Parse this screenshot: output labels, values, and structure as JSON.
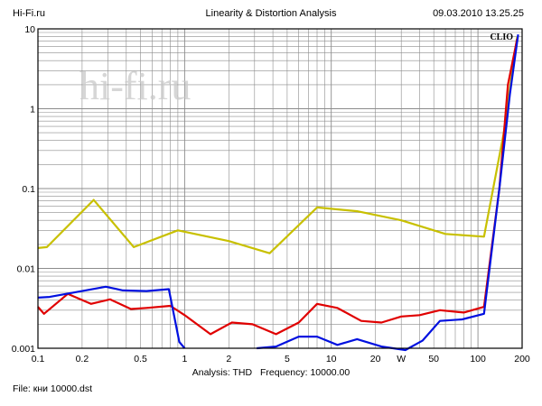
{
  "header": {
    "left": "Hi-Fi.ru",
    "center": "Linearity & Distortion Analysis",
    "right": "09.03.2010 13.25.25"
  },
  "watermark": "hi-fi.ru",
  "brand": "CLIO",
  "footer": {
    "analysis": "Analysis: THD",
    "frequency": "Frequency: 10000.00",
    "file": "File: кни 10000.dst"
  },
  "colors": {
    "series_yellow": "#c8c000",
    "series_red": "#e00000",
    "series_blue": "#0010e0",
    "grid": "#8c8c8c"
  },
  "chart_data": {
    "type": "line",
    "title": "Linearity & Distortion Analysis",
    "xscale": "log",
    "yscale": "log",
    "xlim": [
      0.1,
      200
    ],
    "ylim": [
      0.001,
      10
    ],
    "grid": true,
    "x_tick_labels": [
      {
        "v": 0.1,
        "label": "0.1"
      },
      {
        "v": 0.2,
        "label": "0.2"
      },
      {
        "v": 0.5,
        "label": "0.5"
      },
      {
        "v": 1,
        "label": "1"
      },
      {
        "v": 2,
        "label": "2"
      },
      {
        "v": 5,
        "label": "5"
      },
      {
        "v": 10,
        "label": "10"
      },
      {
        "v": 20,
        "label": "20"
      },
      {
        "v": 30,
        "label": "W"
      },
      {
        "v": 50,
        "label": "50"
      },
      {
        "v": 100,
        "label": "100"
      },
      {
        "v": 200,
        "label": "200"
      }
    ],
    "y_tick_labels": [
      {
        "v": 10,
        "label": "10"
      },
      {
        "v": 1,
        "label": "1"
      },
      {
        "v": 0.1,
        "label": "0.1"
      },
      {
        "v": 0.01,
        "label": "0.01"
      },
      {
        "v": 0.001,
        "label": "0.001"
      }
    ],
    "series": [
      {
        "color": "#c8c000",
        "points": [
          [
            0.1,
            0.018
          ],
          [
            0.115,
            0.0185
          ],
          [
            0.24,
            0.072
          ],
          [
            0.45,
            0.0185
          ],
          [
            0.9,
            0.03
          ],
          [
            2,
            0.022
          ],
          [
            3.8,
            0.0155
          ],
          [
            8,
            0.058
          ],
          [
            15,
            0.052
          ],
          [
            30,
            0.04
          ],
          [
            60,
            0.027
          ],
          [
            110,
            0.025
          ],
          [
            150,
            0.5
          ],
          [
            185,
            8
          ]
        ]
      },
      {
        "color": "#e00000",
        "points": [
          [
            0.1,
            0.0033
          ],
          [
            0.11,
            0.0027
          ],
          [
            0.16,
            0.0048
          ],
          [
            0.23,
            0.0036
          ],
          [
            0.31,
            0.0041
          ],
          [
            0.43,
            0.0031
          ],
          [
            0.55,
            0.0032
          ],
          [
            0.8,
            0.0034
          ],
          [
            1.0,
            0.0026
          ],
          [
            1.5,
            0.0015
          ],
          [
            2.1,
            0.0021
          ],
          [
            2.9,
            0.002
          ],
          [
            4.2,
            0.0015
          ],
          [
            6,
            0.0021
          ],
          [
            8,
            0.0036
          ],
          [
            11,
            0.0032
          ],
          [
            16,
            0.0022
          ],
          [
            22,
            0.0021
          ],
          [
            30,
            0.0025
          ],
          [
            40,
            0.0026
          ],
          [
            55,
            0.003
          ],
          [
            80,
            0.0028
          ],
          [
            110,
            0.0033
          ],
          [
            140,
            0.1
          ],
          [
            160,
            2
          ],
          [
            185,
            7.5
          ]
        ]
      },
      {
        "color": "#0010e0",
        "points": [
          [
            0.1,
            0.0043
          ],
          [
            0.12,
            0.0044
          ],
          [
            0.2,
            0.0052
          ],
          [
            0.29,
            0.0059
          ],
          [
            0.38,
            0.0053
          ],
          [
            0.55,
            0.0052
          ],
          [
            0.78,
            0.0055
          ],
          [
            0.92,
            0.0012
          ],
          [
            1.0,
            0.001
          ]
        ],
        "points2": [
          [
            3.1,
            0.001
          ],
          [
            4.2,
            0.00105
          ],
          [
            6,
            0.0014
          ],
          [
            8,
            0.0014
          ],
          [
            11,
            0.0011
          ],
          [
            15,
            0.0013
          ],
          [
            22,
            0.00105
          ],
          [
            32,
            0.00095
          ],
          [
            42,
            0.00125
          ],
          [
            55,
            0.0022
          ],
          [
            78,
            0.0023
          ],
          [
            110,
            0.0027
          ],
          [
            140,
            0.1
          ],
          [
            165,
            1.5
          ],
          [
            188,
            8.5
          ]
        ]
      }
    ]
  }
}
